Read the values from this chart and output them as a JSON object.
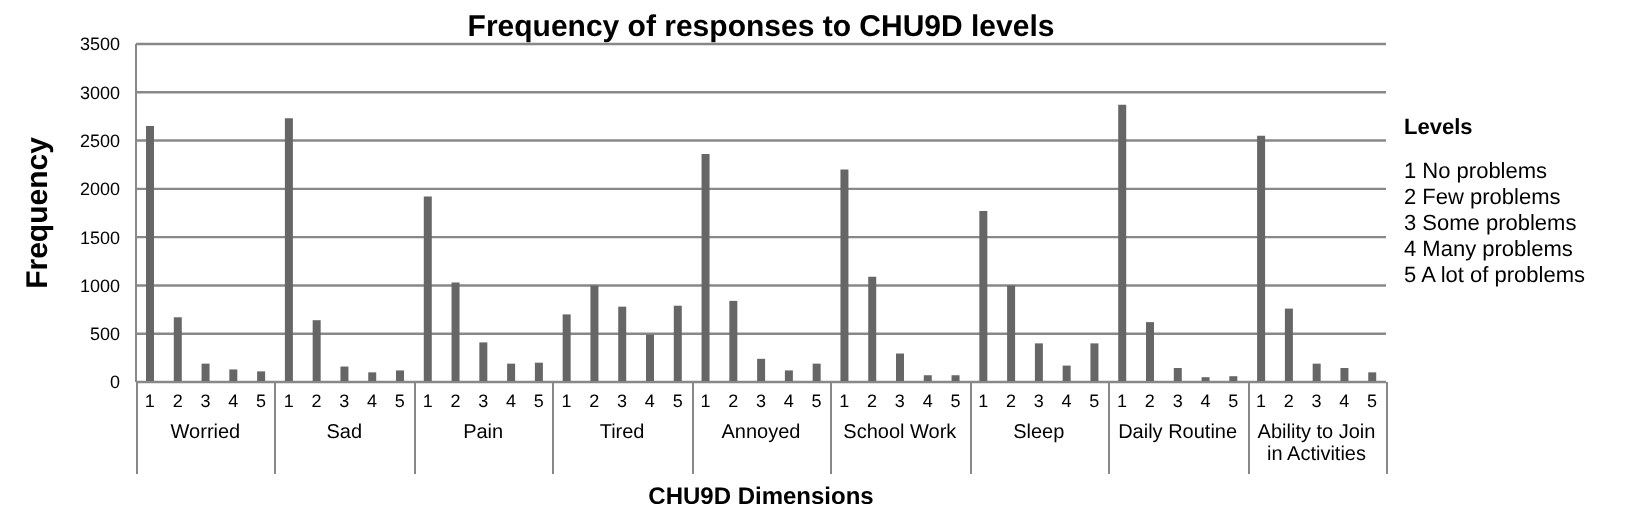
{
  "chart_data": {
    "type": "bar",
    "title": "Frequency of responses to CHU9D levels",
    "xlabel": "CHU9D Dimensions",
    "ylabel": "Frequency",
    "legend_title": "Levels",
    "categories": [
      "1",
      "2",
      "3",
      "4",
      "5",
      "1",
      "2",
      "3",
      "4",
      "5",
      "1",
      "2",
      "3",
      "4",
      "5",
      "1",
      "2",
      "3",
      "4",
      "5",
      "1",
      "2",
      "3",
      "4",
      "5",
      "1",
      "2",
      "3",
      "4",
      "5",
      "1",
      "2",
      "3",
      "4",
      "5",
      "1",
      "2",
      "3",
      "4",
      "5",
      "1",
      "2",
      "3",
      "4",
      "5"
    ],
    "values": [
      2650,
      670,
      190,
      130,
      110,
      2730,
      640,
      160,
      100,
      120,
      1920,
      1030,
      410,
      190,
      200,
      700,
      1000,
      780,
      490,
      790,
      2360,
      840,
      240,
      120,
      190,
      2200,
      1090,
      295,
      70,
      70,
      1770,
      1000,
      400,
      170,
      400,
      2870,
      620,
      145,
      50,
      60,
      2550,
      760,
      190,
      145,
      100
    ],
    "color": "#666666",
    "ylim": [
      0,
      3500
    ],
    "yticks": [
      0,
      500,
      1000,
      1500,
      2000,
      2500,
      3000,
      3500
    ],
    "grid": "y",
    "annotations": [
      "Worried",
      "Sad",
      "Pain",
      "Tired",
      "Annoyed",
      "School Work",
      "Sleep",
      "Daily Routine",
      "Ability to Join in Activities",
      "1 No problems",
      "2 Few problems",
      "3 Some problems",
      "4 Many problems",
      "5 A lot of problems"
    ]
  }
}
